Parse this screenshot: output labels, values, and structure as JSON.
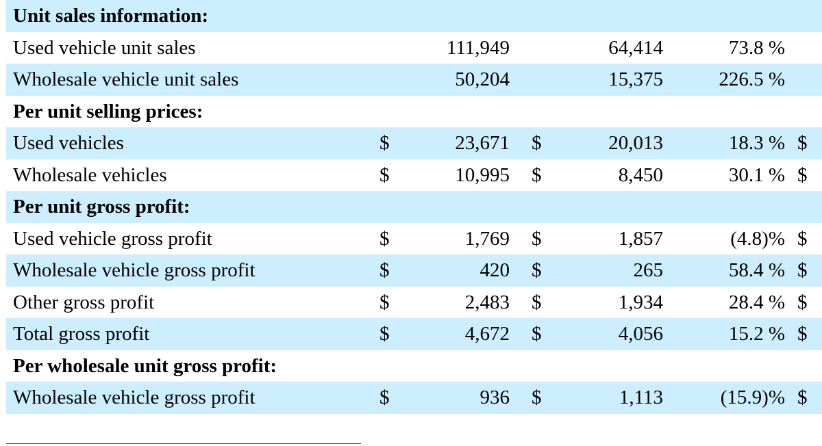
{
  "rows": [
    {
      "type": "heading",
      "shaded": true,
      "label": "Unit sales information:",
      "cur1": "",
      "val1": "",
      "cur2": "",
      "val2": "",
      "pct": "",
      "cur3": ""
    },
    {
      "type": "data",
      "shaded": false,
      "label": "Used vehicle unit sales",
      "cur1": "",
      "val1": "111,949",
      "cur2": "",
      "val2": "64,414",
      "pct": "73.8 %",
      "cur3": ""
    },
    {
      "type": "data",
      "shaded": true,
      "label": "Wholesale vehicle unit sales",
      "cur1": "",
      "val1": "50,204",
      "cur2": "",
      "val2": "15,375",
      "pct": "226.5 %",
      "cur3": ""
    },
    {
      "type": "heading",
      "shaded": false,
      "label": "Per unit selling prices:",
      "cur1": "",
      "val1": "",
      "cur2": "",
      "val2": "",
      "pct": "",
      "cur3": ""
    },
    {
      "type": "data",
      "shaded": true,
      "label": "Used vehicles",
      "cur1": "$",
      "val1": "23,671",
      "cur2": "$",
      "val2": "20,013",
      "pct": "18.3 %",
      "cur3": "$"
    },
    {
      "type": "data",
      "shaded": false,
      "label": "Wholesale vehicles",
      "cur1": "$",
      "val1": "10,995",
      "cur2": "$",
      "val2": "8,450",
      "pct": "30.1 %",
      "cur3": "$"
    },
    {
      "type": "heading",
      "shaded": true,
      "label": "Per unit gross profit:",
      "cur1": "",
      "val1": "",
      "cur2": "",
      "val2": "",
      "pct": "",
      "cur3": ""
    },
    {
      "type": "data",
      "shaded": false,
      "label": "Used vehicle gross profit",
      "cur1": "$",
      "val1": "1,769",
      "cur2": "$",
      "val2": "1,857",
      "pct": "(4.8)%",
      "cur3": "$"
    },
    {
      "type": "data",
      "shaded": true,
      "label": "Wholesale vehicle gross profit",
      "cur1": "$",
      "val1": "420",
      "cur2": "$",
      "val2": "265",
      "pct": "58.4 %",
      "cur3": "$"
    },
    {
      "type": "data",
      "shaded": false,
      "label": "Other gross profit",
      "cur1": "$",
      "val1": "2,483",
      "cur2": "$",
      "val2": "1,934",
      "pct": "28.4 %",
      "cur3": "$"
    },
    {
      "type": "data",
      "shaded": true,
      "label": "Total gross profit",
      "cur1": "$",
      "val1": "4,672",
      "cur2": "$",
      "val2": "4,056",
      "pct": "15.2 %",
      "cur3": "$"
    },
    {
      "type": "heading",
      "shaded": false,
      "label": "Per wholesale unit gross profit:",
      "cur1": "",
      "val1": "",
      "cur2": "",
      "val2": "",
      "pct": "",
      "cur3": ""
    },
    {
      "type": "data",
      "shaded": true,
      "label": "Wholesale vehicle gross profit",
      "cur1": "$",
      "val1": "936",
      "cur2": "$",
      "val2": "1,113",
      "pct": "(15.9)%",
      "cur3": "$"
    }
  ]
}
